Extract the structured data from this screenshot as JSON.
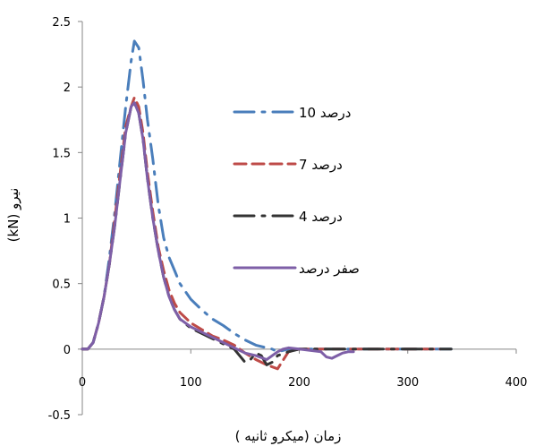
{
  "chart_data": {
    "type": "line",
    "xlabel": "زمان (میکرو ثانیه )",
    "ylabel": "نیرو (kN)",
    "xlim": [
      0,
      400
    ],
    "ylim": [
      -0.5,
      2.5
    ],
    "x_ticks": [
      0,
      100,
      200,
      300,
      400
    ],
    "y_ticks": [
      -0.5,
      0,
      0.5,
      1,
      1.5,
      2,
      2.5
    ],
    "x_tick_labels": [
      "0",
      "100",
      "200",
      "300",
      "400"
    ],
    "y_tick_labels": [
      "-0.5",
      "0",
      "0.5",
      "1",
      "1.5",
      "2",
      "2.5"
    ],
    "grid": false,
    "legend_position": "right",
    "series": [
      {
        "name": "10 درصد",
        "color": "#4a7ebb",
        "dash": "dash-dot",
        "x": [
          0,
          5,
          10,
          15,
          20,
          25,
          30,
          35,
          40,
          45,
          48,
          52,
          56,
          60,
          65,
          70,
          75,
          80,
          85,
          90,
          100,
          110,
          120,
          130,
          140,
          150,
          160,
          170,
          175,
          180,
          190,
          200,
          210,
          230,
          250,
          270,
          300,
          340
        ],
        "y": [
          0,
          0,
          0.05,
          0.2,
          0.4,
          0.7,
          1.05,
          1.45,
          1.85,
          2.2,
          2.35,
          2.3,
          2.05,
          1.75,
          1.45,
          1.1,
          0.85,
          0.7,
          0.6,
          0.5,
          0.38,
          0.3,
          0.23,
          0.18,
          0.12,
          0.07,
          0.03,
          0.01,
          0.0,
          -0.02,
          0.0,
          0.0,
          0.0,
          0.0,
          0.0,
          0.0,
          0.0,
          0.0
        ]
      },
      {
        "name": "7 درصد",
        "color": "#be4b48",
        "dash": "dash",
        "x": [
          0,
          5,
          10,
          15,
          20,
          25,
          30,
          35,
          40,
          45,
          48,
          52,
          56,
          60,
          65,
          70,
          75,
          80,
          85,
          90,
          100,
          110,
          120,
          130,
          140,
          150,
          160,
          170,
          180,
          190,
          200,
          210,
          220,
          250,
          270,
          300,
          320,
          330
        ],
        "y": [
          0,
          0,
          0.05,
          0.2,
          0.4,
          0.65,
          1.0,
          1.35,
          1.7,
          1.85,
          1.92,
          1.85,
          1.65,
          1.35,
          1.05,
          0.78,
          0.6,
          0.45,
          0.35,
          0.28,
          0.2,
          0.15,
          0.1,
          0.07,
          0.03,
          -0.03,
          -0.08,
          -0.12,
          -0.15,
          -0.02,
          0.0,
          0.0,
          0.0,
          0.0,
          0.0,
          0.0,
          0.0,
          0.0
        ]
      },
      {
        "name": "4 درصد",
        "color": "#333333",
        "dash": "dash-dot",
        "x": [
          0,
          5,
          10,
          15,
          20,
          25,
          30,
          35,
          40,
          45,
          48,
          52,
          56,
          60,
          65,
          70,
          75,
          80,
          85,
          90,
          100,
          110,
          120,
          130,
          140,
          145,
          150,
          155,
          160,
          165,
          170,
          175,
          180,
          190,
          200,
          220,
          240,
          260,
          300,
          340
        ],
        "y": [
          0,
          0,
          0.05,
          0.2,
          0.4,
          0.65,
          0.95,
          1.3,
          1.65,
          1.85,
          1.88,
          1.8,
          1.6,
          1.3,
          1.0,
          0.75,
          0.55,
          0.4,
          0.3,
          0.23,
          0.16,
          0.12,
          0.08,
          0.04,
          0.0,
          -0.05,
          -0.1,
          -0.08,
          -0.03,
          -0.05,
          -0.12,
          -0.1,
          -0.05,
          -0.02,
          0.0,
          0.0,
          0.0,
          0.0,
          0.0,
          0.0
        ]
      },
      {
        "name": "صفر درصد",
        "color": "#7e5fa7",
        "dash": "solid",
        "x": [
          0,
          5,
          10,
          15,
          20,
          25,
          30,
          35,
          40,
          45,
          48,
          52,
          56,
          60,
          65,
          70,
          75,
          80,
          85,
          90,
          100,
          110,
          120,
          130,
          140,
          150,
          160,
          170,
          180,
          185,
          190,
          200,
          210,
          220,
          225,
          230,
          235,
          240,
          245,
          250
        ],
        "y": [
          0,
          0,
          0.05,
          0.2,
          0.4,
          0.65,
          0.95,
          1.3,
          1.65,
          1.85,
          1.88,
          1.8,
          1.6,
          1.3,
          1.0,
          0.75,
          0.55,
          0.4,
          0.3,
          0.23,
          0.17,
          0.13,
          0.09,
          0.05,
          0.01,
          -0.03,
          -0.05,
          -0.08,
          -0.02,
          0.0,
          0.01,
          0.0,
          -0.01,
          -0.02,
          -0.06,
          -0.07,
          -0.05,
          -0.03,
          -0.02,
          -0.02
        ]
      }
    ]
  }
}
